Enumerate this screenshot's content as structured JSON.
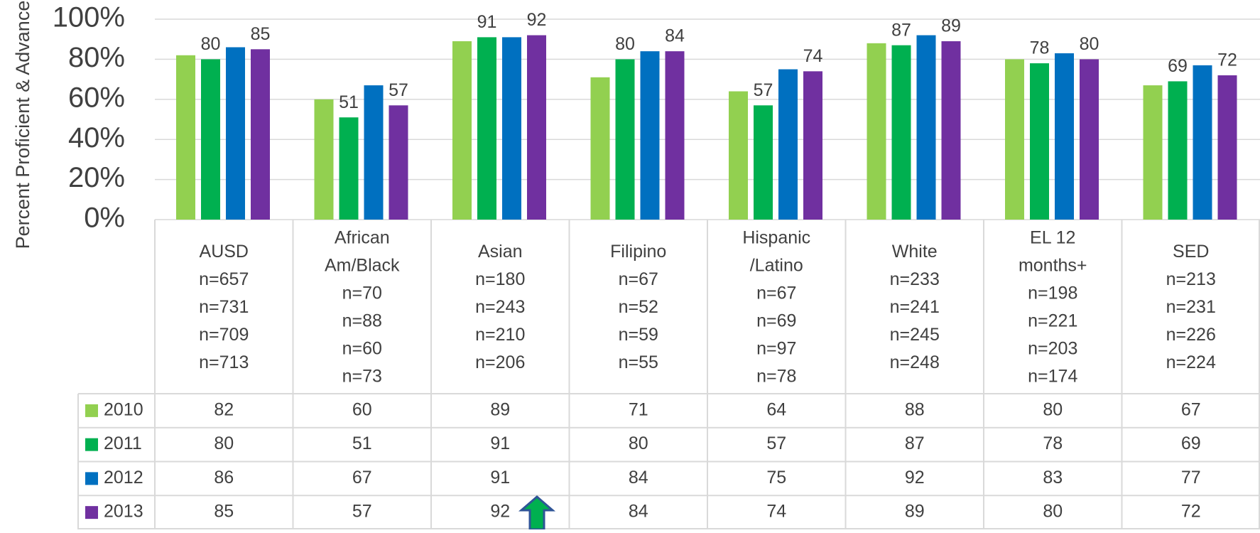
{
  "chart_data": {
    "type": "bar",
    "y_axis_label": "Percent Proficient & Advanced",
    "categories": [
      [
        "AUSD",
        "n=657",
        "n=731",
        "n=709",
        "n=713"
      ],
      [
        "African",
        "Am/Black",
        "n=70",
        "n=88",
        "n=60",
        "n=73"
      ],
      [
        "Asian",
        "n=180",
        "n=243",
        "n=210",
        "n=206"
      ],
      [
        "Filipino",
        "n=67",
        "n=52",
        "n=59",
        "n=55"
      ],
      [
        "Hispanic",
        "/Latino",
        "n=67",
        "n=69",
        "n=97",
        "n=78"
      ],
      [
        "White",
        "n=233",
        "n=241",
        "n=245",
        "n=248"
      ],
      [
        "EL 12",
        "months+",
        "n=198",
        "n=221",
        "n=203",
        "n=174"
      ],
      [
        "SED",
        "n=213",
        "n=231",
        "n=226",
        "n=224"
      ]
    ],
    "series": [
      {
        "name": "2010",
        "color": "#92d050",
        "data_labels": false,
        "values": [
          82,
          60,
          89,
          71,
          64,
          88,
          80,
          67
        ]
      },
      {
        "name": "2011",
        "color": "#00b050",
        "data_labels": true,
        "values": [
          80,
          51,
          91,
          80,
          57,
          87,
          78,
          69
        ]
      },
      {
        "name": "2012",
        "color": "#0070c0",
        "data_labels": false,
        "values": [
          86,
          67,
          91,
          84,
          75,
          92,
          83,
          77
        ]
      },
      {
        "name": "2013",
        "color": "#7030a0",
        "data_labels": true,
        "values": [
          85,
          57,
          92,
          84,
          74,
          89,
          80,
          72
        ]
      }
    ],
    "ylim": [
      0,
      100
    ],
    "yticks": [
      {
        "value": 0,
        "label": "0%"
      },
      {
        "value": 20,
        "label": "20%"
      },
      {
        "value": 40,
        "label": "40%"
      },
      {
        "value": 60,
        "label": "60%"
      },
      {
        "value": 80,
        "label": "80%"
      },
      {
        "value": 100,
        "label": "100%"
      }
    ],
    "grid": true,
    "data_table": true
  }
}
